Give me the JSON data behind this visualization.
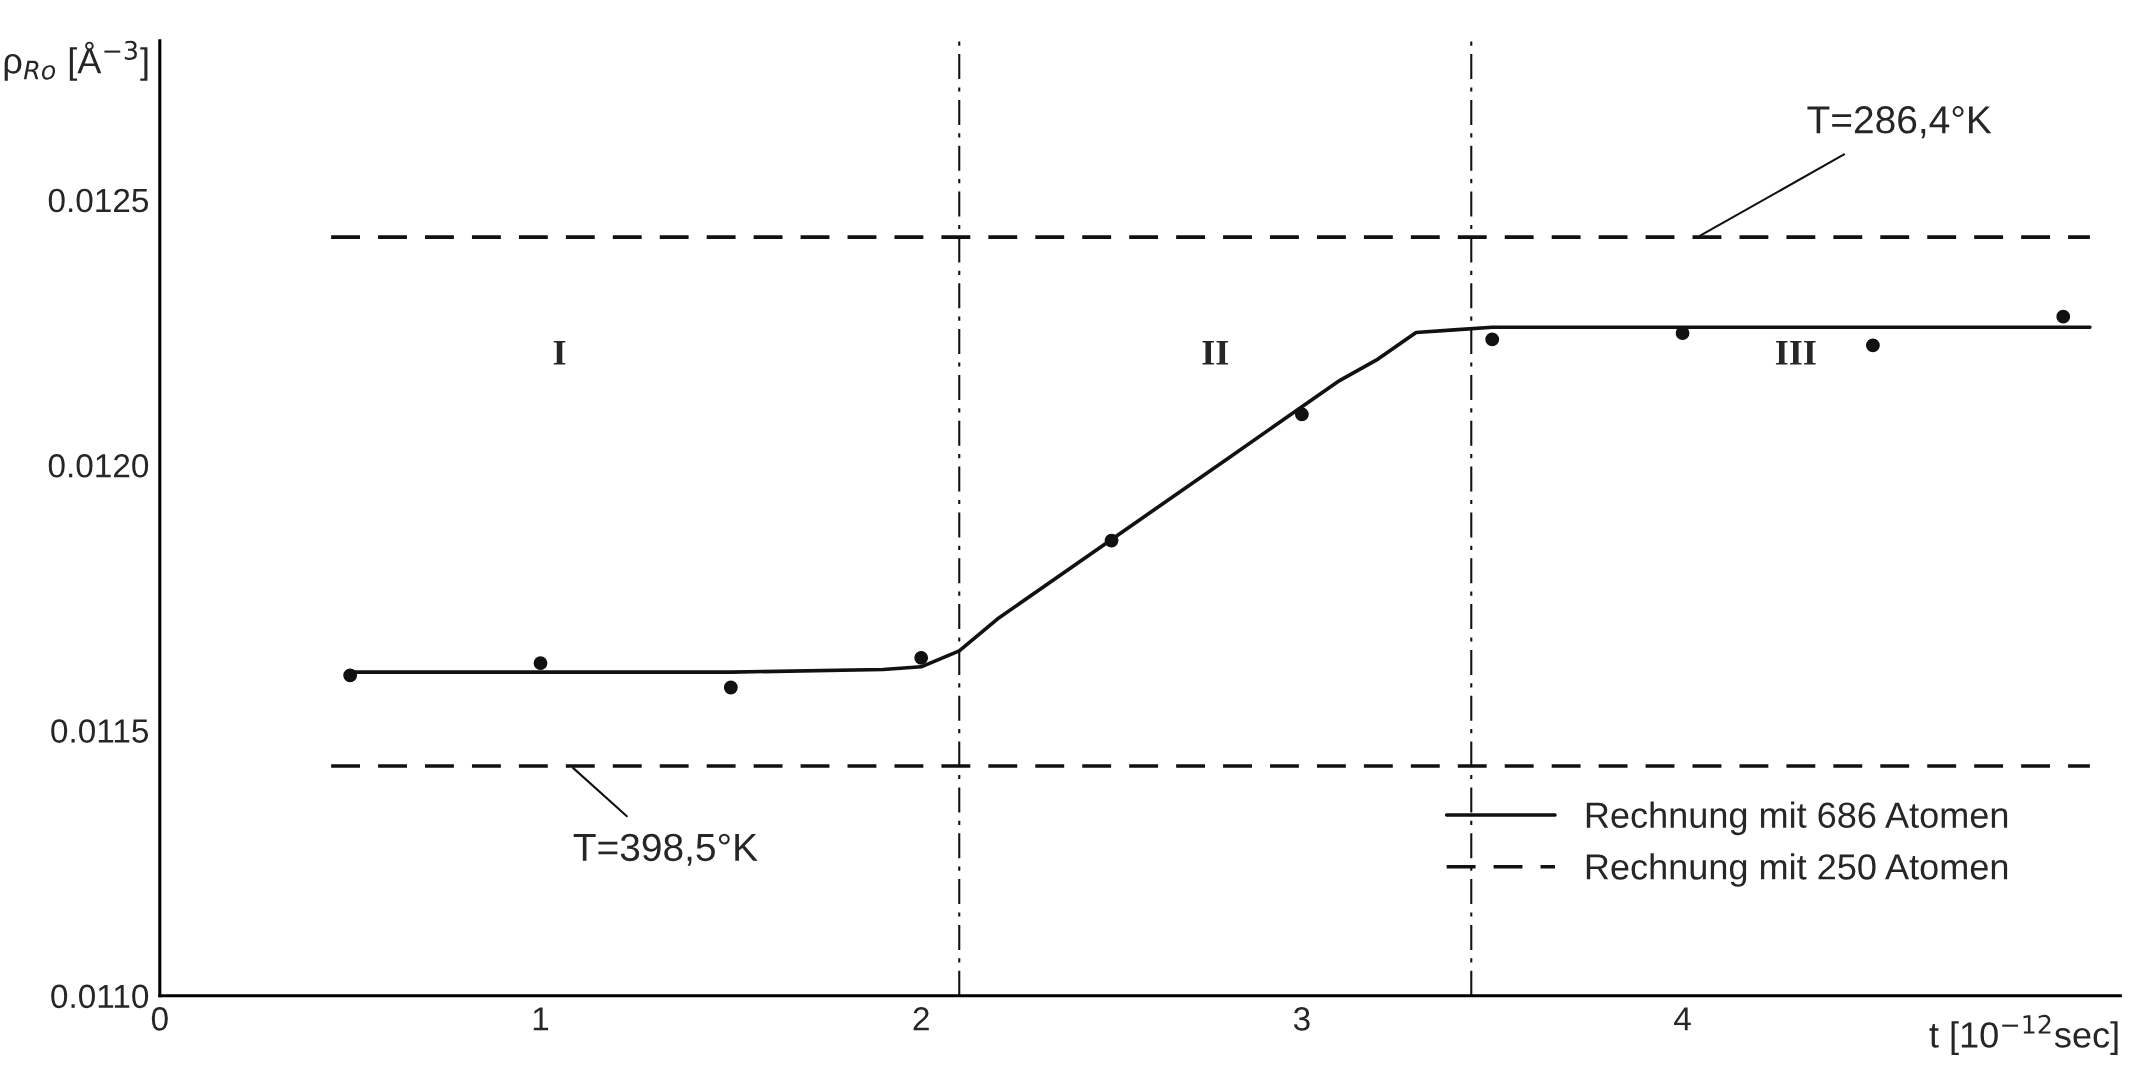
{
  "chart_data": {
    "type": "line",
    "xlabel": "t [10$^{−12}$sec]",
    "ylabel": "ρ$_{Ro}$ [Å$^{−3}$]",
    "xlim": [
      0,
      5.15
    ],
    "ylim": [
      0.011,
      0.0128
    ],
    "xticks": [
      0,
      1,
      2,
      3,
      4
    ],
    "yticks": [
      {
        "value": 0.011,
        "label": "0.0110"
      },
      {
        "value": 0.0115,
        "label": "0.0115"
      },
      {
        "value": 0.012,
        "label": "0.0120"
      },
      {
        "value": 0.0125,
        "label": "0.0125"
      }
    ],
    "grid": false,
    "legend": "bottom right",
    "series": [
      {
        "name": "Rechnung mit 686 Atomen",
        "line_style": "solid",
        "marker": "none",
        "color": "#111111",
        "x": [
          0.5,
          1.0,
          1.5,
          1.9,
          2.0,
          2.1,
          2.2,
          2.5,
          2.8,
          3.0,
          3.1,
          3.2,
          3.3,
          3.4,
          3.5,
          4.0,
          4.5,
          5.07
        ],
        "values": [
          0.01161,
          0.01161,
          0.01161,
          0.011615,
          0.01162,
          0.01165,
          0.01171,
          0.01186,
          0.01201,
          0.01211,
          0.01216,
          0.0122,
          0.01225,
          0.012255,
          0.01226,
          0.01226,
          0.01226,
          0.01226
        ]
      },
      {
        "name": "Rechnung mit 250 Atomen",
        "line_style": "dashed",
        "marker": "none",
        "color": "#111111",
        "x": [
          0.45,
          5.07
        ],
        "values": [
          0.01243,
          0.01243
        ]
      },
      {
        "line_style": "dashed",
        "marker": "none",
        "color": "#111111",
        "x": [
          0.45,
          5.07
        ],
        "values": [
          0.011433,
          0.011433
        ]
      },
      {
        "type": "scatter",
        "marker": "circle",
        "color": "#111111",
        "x": [
          0.5,
          1.0,
          1.5,
          2.0,
          2.5,
          3.0,
          3.5,
          4.0,
          4.5,
          5.0
        ],
        "values": [
          0.011604,
          0.011627,
          0.011581,
          0.011637,
          0.011858,
          0.012096,
          0.012237,
          0.012249,
          0.012226,
          0.01228
        ]
      }
    ],
    "ref_lines": [
      {
        "axis": "x",
        "value": 2.1,
        "line_style": "dashdot",
        "color": "#111111"
      },
      {
        "axis": "x",
        "value": 3.445,
        "line_style": "dashdot",
        "color": "#111111"
      }
    ],
    "annotations": [
      {
        "text": "T=286,4°K",
        "x": 4.04,
        "y": 0.01243
      },
      {
        "text": "T=398,5°K",
        "x": 1.08,
        "y": 0.011433
      },
      "I",
      "II",
      "III"
    ]
  }
}
